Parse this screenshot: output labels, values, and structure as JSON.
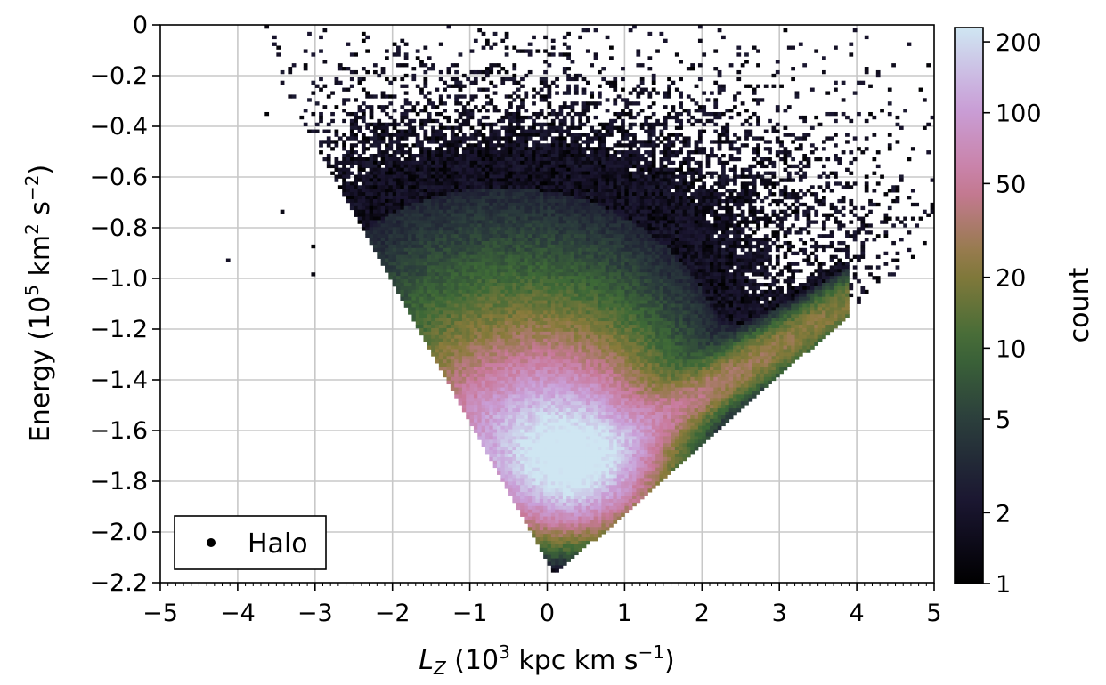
{
  "chart_data": {
    "type": "heatmap",
    "title": "",
    "xlabel": {
      "main": "L",
      "sub": "Z",
      "rest": " (10",
      "sup": "3",
      "tail": " kpc km s",
      "sup2": "−1",
      "close": ")"
    },
    "ylabel": {
      "main": "Energy (10",
      "sup": "5",
      "mid": " km",
      "sup2": "2",
      "rest": " s",
      "sup3": "−2",
      "close": ")"
    },
    "xlim": [
      -5,
      5
    ],
    "ylim": [
      -2.2,
      0
    ],
    "x_ticks": [
      -5,
      -4,
      -3,
      -2,
      -1,
      0,
      1,
      2,
      3,
      4,
      5
    ],
    "x_tick_labels": [
      "−5",
      "−4",
      "−3",
      "−2",
      "−1",
      "0",
      "1",
      "2",
      "3",
      "4",
      "5"
    ],
    "y_ticks": [
      0,
      -0.2,
      -0.4,
      -0.6,
      -0.8,
      -1.0,
      -1.2,
      -1.4,
      -1.6,
      -1.8,
      -2.0,
      -2.2
    ],
    "y_tick_labels": [
      "0",
      "−0.2",
      "−0.4",
      "−0.6",
      "−0.8",
      "−1.0",
      "−1.2",
      "−1.4",
      "−1.6",
      "−1.8",
      "−2.0",
      "−2.2"
    ],
    "grid": true,
    "legend": {
      "placement": "lower-left",
      "entries": [
        "Halo"
      ]
    },
    "colorbar": {
      "label": "count",
      "scale": "log",
      "range": [
        1,
        230
      ],
      "ticks": [
        1,
        2,
        5,
        10,
        20,
        50,
        100,
        200
      ],
      "tick_labels": [
        "1",
        "2",
        "5",
        "10",
        "20",
        "50",
        "100",
        "200"
      ],
      "colormap": "cubehelix",
      "colors": [
        "#000000",
        "#1a1530",
        "#2a3b3c",
        "#3e6a37",
        "#8a7b3b",
        "#c9799a",
        "#c99fd8",
        "#cfe6f2"
      ]
    },
    "density_peak": {
      "x": 0.3,
      "y": -1.72,
      "count": 220
    },
    "density_structure": "V-shaped distribution; dense core near Lz ≈ 0, E ≈ −1.7; prograde arm extends to Lz ≈ 3.8, E ≈ −1.1; sparse scatter up to E ≈ 0"
  },
  "colors": {
    "grid": "#c8c8c8",
    "axis": "#000000",
    "background": "#ffffff"
  }
}
